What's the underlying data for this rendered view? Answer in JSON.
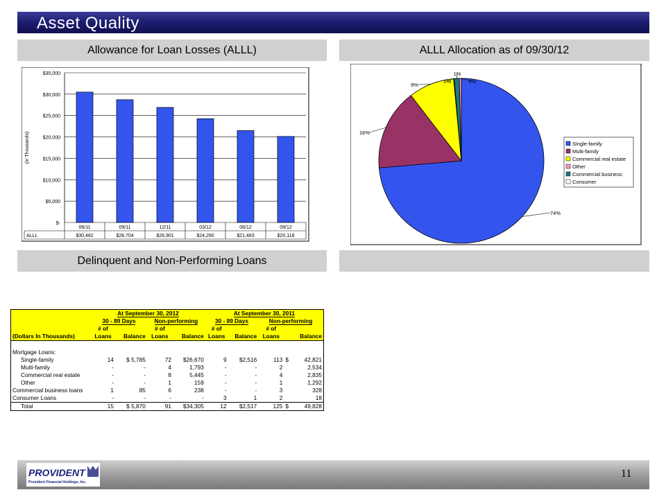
{
  "title": "Asset Quality",
  "sections": {
    "allowance": "Allowance for Loan Losses (ALLL)",
    "allocation": "ALLL Allocation as of 09/30/12",
    "delinquent": "Delinquent and Non-Performing Loans"
  },
  "chart_data": [
    {
      "type": "bar",
      "title": "",
      "ylabel": "(in Thousands)",
      "categories": [
        "06/11",
        "09/11",
        "12/11",
        "03/12",
        "06/12",
        "09/12"
      ],
      "series": [
        {
          "name": "ALLL",
          "values": [
            30482,
            28704,
            26901,
            24260,
            21483,
            20118
          ],
          "color": "#3355ee"
        }
      ],
      "table_row_label": "ALLL",
      "table_values": [
        "$30,482",
        "$28,704",
        "$26,901",
        "$24,260",
        "$21,483",
        "$20,118"
      ],
      "ylim": [
        0,
        35000
      ],
      "yticks": [
        "$-",
        "$5,000",
        "$10,000",
        "$15,000",
        "$20,000",
        "$25,000",
        "$30,000",
        "$35,000"
      ],
      "grid": true
    },
    {
      "type": "pie",
      "title": "",
      "legend_position": "right",
      "slices": [
        {
          "label": "Single-family",
          "value": 74,
          "display": "74%",
          "color": "#3355ee"
        },
        {
          "label": "Multi-family",
          "value": 16,
          "display": "16%",
          "color": "#993366"
        },
        {
          "label": "Commercial real estate",
          "value": 9,
          "display": "9%",
          "color": "#ffff00"
        },
        {
          "label": "Other",
          "value": 0.4,
          "display": "0%",
          "color": "#ff99cc"
        },
        {
          "label": "Commercial business",
          "value": 1,
          "display": "1%",
          "color": "#1d7a7a"
        },
        {
          "label": "Consumer",
          "value": 0.1,
          "display": "0%",
          "color": "#ffffff"
        }
      ]
    }
  ],
  "table": {
    "group_headers": [
      "At September 30, 2012",
      "At September 30, 2011"
    ],
    "sub_headers": [
      "30 - 89 Days",
      "Non-performing",
      "30 - 89 Days",
      "Non-performing"
    ],
    "num_of": "# of",
    "row_header": "(Dollars In Thousands)",
    "col_loans": "Loans",
    "col_balance": "Balance",
    "section_label": "Mortgage Loans:",
    "rows": [
      {
        "label": "Single-family",
        "cells": [
          "14",
          "$ 5,785",
          "72",
          "$26,670",
          "9",
          "$2,516",
          "113",
          "$",
          "42,821"
        ]
      },
      {
        "label": "Multi-family",
        "cells": [
          "-",
          "-",
          "4",
          "1,793",
          "-",
          "-",
          "2",
          "",
          "2,534"
        ]
      },
      {
        "label": "Commercial real estate",
        "cells": [
          "-",
          "-",
          "8",
          "5,445",
          "-",
          "-",
          "4",
          "",
          "2,835"
        ]
      },
      {
        "label": "Other",
        "cells": [
          "-",
          "-",
          "1",
          "159",
          "-",
          "-",
          "1",
          "",
          "1,292"
        ]
      },
      {
        "label": "Commercial business loans",
        "cells": [
          "1",
          "85",
          "6",
          "238",
          "-",
          "-",
          "3",
          "",
          "328"
        ]
      },
      {
        "label": "Consumer Loans",
        "cells": [
          "-",
          "-",
          "-",
          "-",
          "3",
          "1",
          "2",
          "",
          "18"
        ]
      }
    ],
    "total": {
      "label": "Total",
      "cells": [
        "15",
        "$ 5,870",
        "91",
        "$34,305",
        "12",
        "$2,517",
        "125",
        "$",
        "49,828"
      ]
    }
  },
  "footer": {
    "logo_name": "PROVIDENT",
    "logo_sub": "Provident Financial Holdings, Inc.",
    "page": "11"
  }
}
